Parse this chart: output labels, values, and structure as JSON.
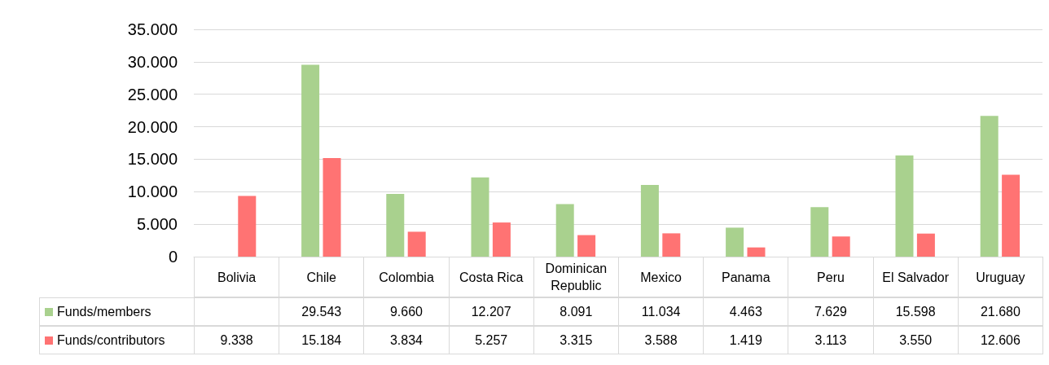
{
  "chart_data": {
    "type": "bar",
    "categories": [
      "Bolivia",
      "Chile",
      "Colombia",
      "Costa Rica",
      "Dominican Republic",
      "Mexico",
      "Panama",
      "Peru",
      "El Salvador",
      "Uruguay"
    ],
    "series": [
      {
        "name": "Funds/members",
        "color": "#a9d18e",
        "values": [
          null,
          29543,
          9660,
          12207,
          8091,
          11034,
          4463,
          7629,
          15598,
          21680
        ],
        "value_labels": [
          null,
          "29.543",
          "9.660",
          "12.207",
          "8.091",
          "11.034",
          "4.463",
          "7.629",
          "15.598",
          "21.680"
        ]
      },
      {
        "name": "Funds/contributors",
        "color": "#ff7373",
        "values": [
          9338,
          15184,
          3834,
          5257,
          3315,
          3588,
          1419,
          3113,
          3550,
          12606
        ],
        "value_labels": [
          "9.338",
          "15.184",
          "3.834",
          "5.257",
          "3.315",
          "3.588",
          "1.419",
          "3.113",
          "3.550",
          "12.606"
        ]
      }
    ],
    "ylim": [
      0,
      35000
    ],
    "yticks": [
      0,
      {
        "value": 5000,
        "label": "5.000"
      },
      {
        "value": 10000,
        "label": "10.000"
      },
      {
        "value": 15000,
        "label": "15.000"
      },
      {
        "value": 20000,
        "label": "20.000"
      },
      {
        "value": 25000,
        "label": "25.000"
      },
      {
        "value": 30000,
        "label": "30.000"
      },
      {
        "value": 35000,
        "label": "35.000"
      }
    ],
    "grid": "y",
    "legend": "bottom left"
  }
}
